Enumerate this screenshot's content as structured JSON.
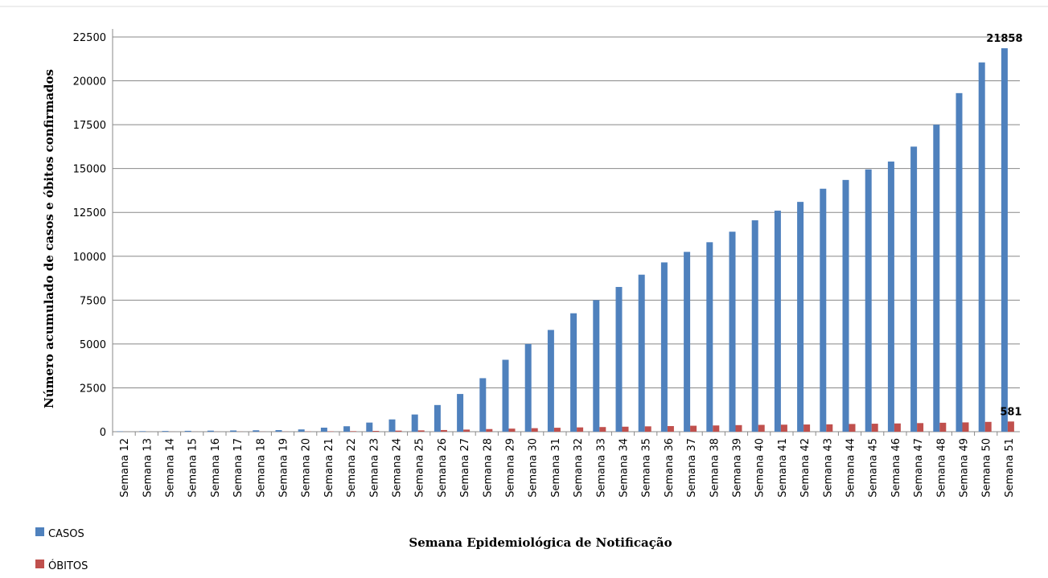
{
  "chart_data": {
    "type": "bar",
    "y_label": "Número acumulado de casos e óbitos confirmados",
    "x_label": "Semana Epidemiológica de Notificação",
    "categories": [
      "Semana 12",
      "Semana 13",
      "Semana 14",
      "Semana 15",
      "Semana 16",
      "Semana 17",
      "Semana 18",
      "Semana 19",
      "Semana 20",
      "Semana 21",
      "Semana 22",
      "Semana 23",
      "Semana 24",
      "Semana 25",
      "Semana 26",
      "Semana 27",
      "Semana 28",
      "Semana 29",
      "Semana 30",
      "Semana 31",
      "Semana 32",
      "Semana 33",
      "Semana 34",
      "Semana 35",
      "Semana 36",
      "Semana 37",
      "Semana 38",
      "Semana 39",
      "Semana 40",
      "Semana 41",
      "Semana 42",
      "Semana 43",
      "Semana 44",
      "Semana 45",
      "Semana 46",
      "Semana 47",
      "Semana 48",
      "Semana 49",
      "Semana 50",
      "Semana 51"
    ],
    "series": [
      {
        "name": "CASOS",
        "color": "#4f81bd",
        "values": [
          20,
          30,
          40,
          50,
          60,
          70,
          80,
          90,
          130,
          230,
          310,
          520,
          700,
          980,
          1520,
          2150,
          3050,
          4100,
          5000,
          5800,
          6750,
          7500,
          8250,
          8950,
          9650,
          10250,
          10800,
          11400,
          12050,
          12600,
          13100,
          13850,
          14350,
          14950,
          15400,
          16250,
          17500,
          19300,
          21050,
          21858
        ]
      },
      {
        "name": "ÓBITOS",
        "color": "#c0504d",
        "values": [
          1,
          1,
          2,
          3,
          4,
          5,
          6,
          8,
          12,
          20,
          30,
          45,
          60,
          75,
          95,
          120,
          150,
          175,
          200,
          225,
          245,
          265,
          285,
          305,
          320,
          340,
          355,
          375,
          390,
          400,
          410,
          420,
          440,
          455,
          470,
          490,
          510,
          530,
          560,
          581
        ]
      }
    ],
    "ylim": [
      0,
      22500
    ],
    "yticks": [
      0,
      2500,
      5000,
      7500,
      10000,
      12500,
      15000,
      17500,
      20000,
      22500
    ],
    "grid": true
  }
}
